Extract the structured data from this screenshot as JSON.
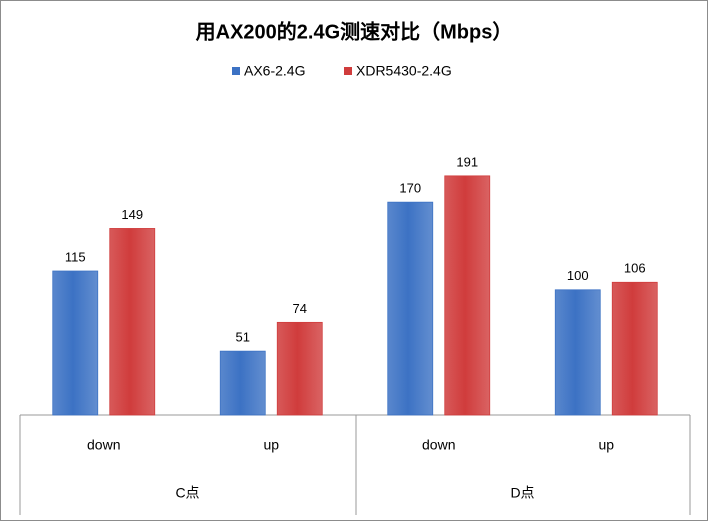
{
  "chart_data": {
    "type": "bar",
    "title": "用AX200的2.4G测速对比（Mbps）",
    "groups": [
      {
        "name": "C点",
        "categories": [
          "down",
          "up"
        ]
      },
      {
        "name": "D点",
        "categories": [
          "down",
          "up"
        ]
      }
    ],
    "series": [
      {
        "name": "AX6-2.4G",
        "color": "#3c72c4",
        "values": [
          115,
          51,
          170,
          100
        ]
      },
      {
        "name": "XDR5430-2.4G",
        "color": "#d03c3c",
        "values": [
          149,
          74,
          191,
          106
        ]
      }
    ],
    "legend": "top"
  }
}
